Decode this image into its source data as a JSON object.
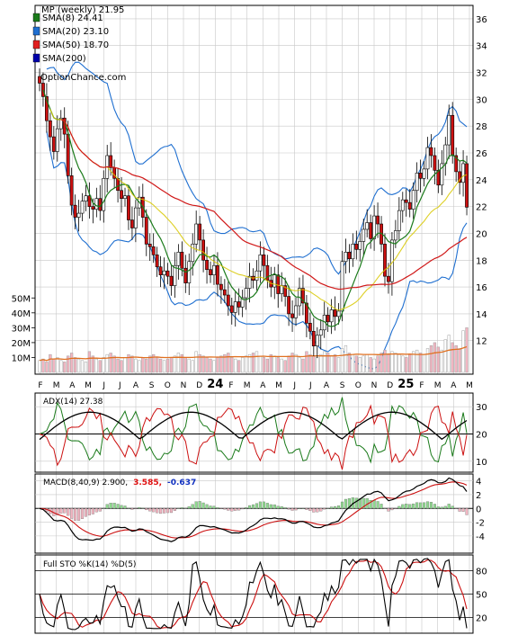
{
  "header": {
    "title": "MP (weekly) 21.95",
    "watermark": "OptionChance.com"
  },
  "legend": [
    {
      "label": "SMA(8) 24.41",
      "color": "#1a7a1a"
    },
    {
      "label": "SMA(20) 23.10",
      "color": "#1f6fd0"
    },
    {
      "label": "SMA(50) 18.70",
      "color": "#e02020"
    },
    {
      "label": "SMA(200)",
      "color": "#0000aa"
    }
  ],
  "x_labels": [
    {
      "t": "F",
      "bold": false
    },
    {
      "t": "M",
      "bold": false
    },
    {
      "t": "A",
      "bold": false
    },
    {
      "t": "M",
      "bold": false
    },
    {
      "t": "J",
      "bold": false
    },
    {
      "t": "J",
      "bold": false
    },
    {
      "t": "A",
      "bold": false
    },
    {
      "t": "S",
      "bold": false
    },
    {
      "t": "O",
      "bold": false
    },
    {
      "t": "N",
      "bold": false
    },
    {
      "t": "D",
      "bold": false
    },
    {
      "t": "24",
      "bold": true
    },
    {
      "t": "F",
      "bold": false
    },
    {
      "t": "M",
      "bold": false
    },
    {
      "t": "A",
      "bold": false
    },
    {
      "t": "M",
      "bold": false
    },
    {
      "t": "J",
      "bold": false
    },
    {
      "t": "J",
      "bold": false
    },
    {
      "t": "A",
      "bold": false
    },
    {
      "t": "S",
      "bold": false
    },
    {
      "t": "O",
      "bold": false
    },
    {
      "t": "N",
      "bold": false
    },
    {
      "t": "D",
      "bold": false
    },
    {
      "t": "25",
      "bold": true
    },
    {
      "t": "F",
      "bold": false
    },
    {
      "t": "M",
      "bold": false
    },
    {
      "t": "A",
      "bold": false
    },
    {
      "t": "M",
      "bold": false
    }
  ],
  "chart_data": {
    "type": "candlestick",
    "title": "MP (weekly) 21.95",
    "price_axis": {
      "ylim": [
        9.5,
        37
      ],
      "ticks": [
        12,
        14,
        16,
        18,
        20,
        22,
        24,
        26,
        28,
        30,
        32,
        34,
        36
      ]
    },
    "volume_axis": {
      "ylim": [
        0,
        55
      ],
      "unit": "M",
      "ticks": [
        10,
        20,
        30,
        40,
        50
      ],
      "tick_labels": [
        "10M",
        "20M",
        "30M",
        "40M",
        "50M"
      ]
    },
    "close": [
      31.2,
      30.2,
      28.4,
      27.2,
      26.1,
      27.8,
      28.6,
      27.4,
      24.3,
      22.1,
      21.2,
      21.5,
      22.4,
      22.8,
      22.0,
      21.8,
      22.6,
      21.7,
      24.1,
      25.8,
      24.9,
      24.1,
      23.2,
      22.6,
      22.8,
      21.0,
      20.4,
      21.9,
      22.7,
      21.2,
      19.2,
      19.0,
      18.4,
      17.5,
      16.9,
      17.2,
      16.8,
      16.1,
      17.6,
      18.6,
      17.4,
      16.3,
      17.9,
      19.2,
      20.7,
      19.5,
      18.0,
      17.3,
      16.9,
      17.6,
      16.2,
      15.8,
      15.4,
      14.6,
      14.1,
      14.9,
      14.5,
      15.2,
      15.9,
      16.8,
      16.5,
      17.2,
      18.4,
      17.6,
      16.5,
      16.0,
      16.9,
      15.5,
      16.1,
      15.3,
      14.0,
      13.7,
      14.6,
      15.9,
      14.8,
      13.3,
      12.7,
      11.6,
      12.4,
      12.8,
      13.9,
      13.4,
      14.3,
      13.8,
      14.2,
      17.9,
      18.6,
      18.1,
      19.2,
      18.8,
      19.4,
      20.3,
      20.8,
      19.6,
      21.3,
      20.7,
      19.2,
      16.8,
      16.4,
      19.5,
      20.2,
      21.7,
      22.5,
      22.3,
      21.8,
      23.2,
      24.5,
      24.1,
      24.8,
      26.4,
      25.8,
      24.7,
      23.6,
      25.2,
      26.6,
      28.8,
      25.8,
      24.6,
      23.8,
      25.2,
      21.95
    ],
    "volume_m": [
      8,
      9,
      7,
      12,
      9,
      10,
      8,
      7,
      11,
      13,
      10,
      9,
      8,
      7,
      14,
      11,
      9,
      8,
      10,
      12,
      13,
      11,
      9,
      8,
      10,
      12,
      11,
      9,
      8,
      10,
      9,
      11,
      12,
      10,
      9,
      8,
      9,
      10,
      11,
      13,
      12,
      10,
      9,
      8,
      14,
      12,
      11,
      10,
      9,
      8,
      10,
      11,
      12,
      13,
      10,
      9,
      8,
      10,
      11,
      12,
      13,
      14,
      11,
      10,
      9,
      12,
      11,
      10,
      9,
      8,
      11,
      13,
      12,
      10,
      9,
      14,
      12,
      11,
      10,
      12,
      14,
      13,
      11,
      12,
      10,
      16,
      18,
      13,
      12,
      11,
      10,
      11,
      12,
      10,
      9,
      11,
      13,
      15,
      12,
      14,
      13,
      12,
      11,
      10,
      12,
      14,
      15,
      13,
      12,
      16,
      18,
      20,
      17,
      15,
      22,
      25,
      20,
      18,
      16,
      28,
      30
    ],
    "series": [
      {
        "name": "SMA(8)",
        "value": 24.41
      },
      {
        "name": "SMA(20)",
        "value": 23.1
      },
      {
        "name": "SMA(50)",
        "value": 18.7
      },
      {
        "name": "SMA(200)"
      }
    ],
    "indicators": [
      {
        "name": "ADX(14)",
        "label": "ADX(14) 27.38",
        "ylim": [
          6,
          35
        ],
        "ticks": [
          10,
          20,
          30
        ]
      },
      {
        "name": "MACD(8,40,9)",
        "label": "MACD(8,40,9) 2.900,",
        "values": [
          "3.585,",
          "-0.637"
        ],
        "value_colors": [
          "#e01010",
          "#1030c0"
        ],
        "ylim": [
          -6.5,
          5
        ],
        "ticks": [
          -4,
          -2,
          0,
          2,
          4
        ]
      },
      {
        "name": "Full STO %K(14) %D(5)",
        "label": "Full STO %K(14) %D(5)",
        "ylim": [
          0,
          100
        ],
        "ticks": [
          20,
          50,
          80
        ]
      }
    ]
  }
}
